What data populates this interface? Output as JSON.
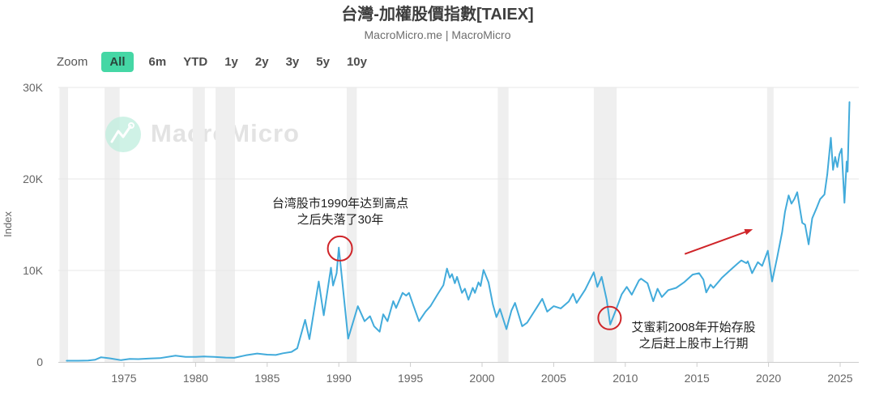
{
  "header": {
    "title": "台灣-加權股價指數[TAIEX]",
    "subtitle": "MacroMicro.me | MacroMicro"
  },
  "toolbar": {
    "zoom_label": "Zoom",
    "buttons": [
      {
        "label": "All",
        "active": true
      },
      {
        "label": "6m",
        "active": false
      },
      {
        "label": "YTD",
        "active": false
      },
      {
        "label": "1y",
        "active": false
      },
      {
        "label": "2y",
        "active": false
      },
      {
        "label": "3y",
        "active": false
      },
      {
        "label": "5y",
        "active": false
      },
      {
        "label": "10y",
        "active": false
      }
    ]
  },
  "watermark": {
    "text": "MacroMicro",
    "icon": "macromicro-logo"
  },
  "colors": {
    "accent_mint": "#45d7a5",
    "line_blue": "#42abdb",
    "annotation_red": "#cf2428",
    "recession_band": "#efefef",
    "grid_line": "#e7e7e7",
    "axis_line": "#cccccc"
  },
  "chart_data": {
    "type": "line",
    "title": "台灣-加權股價指數[TAIEX]",
    "ylabel": "Index",
    "x_axis": {
      "min": 1970.42,
      "max": 2026.3,
      "ticks": [
        1975,
        1980,
        1985,
        1990,
        1995,
        2000,
        2005,
        2010,
        2015,
        2020,
        2025
      ]
    },
    "y_axis": {
      "min": 0,
      "max": 30000,
      "ticks": [
        {
          "value": 0,
          "label": "0"
        },
        {
          "value": 10000,
          "label": "10K"
        },
        {
          "value": 20000,
          "label": "20K"
        },
        {
          "value": 30000,
          "label": "30K"
        }
      ]
    },
    "recession_bands": [
      [
        1970.5,
        1971.1
      ],
      [
        1973.65,
        1974.7
      ],
      [
        1979.8,
        1980.65
      ],
      [
        1981.4,
        1982.75
      ],
      [
        1990.55,
        1991.25
      ],
      [
        2001.1,
        2001.85
      ],
      [
        2007.8,
        2009.4
      ],
      [
        2019.9,
        2020.35
      ]
    ],
    "series": [
      {
        "name": "TAIEX",
        "points": [
          [
            1971.0,
            130
          ],
          [
            1971.8,
            135
          ],
          [
            1972.5,
            160
          ],
          [
            1973.0,
            250
          ],
          [
            1973.4,
            510
          ],
          [
            1974.0,
            400
          ],
          [
            1974.8,
            195
          ],
          [
            1975.4,
            330
          ],
          [
            1976.0,
            310
          ],
          [
            1976.8,
            370
          ],
          [
            1977.5,
            420
          ],
          [
            1978.6,
            690
          ],
          [
            1979.3,
            550
          ],
          [
            1980.0,
            560
          ],
          [
            1980.6,
            590
          ],
          [
            1981.3,
            550
          ],
          [
            1982.1,
            480
          ],
          [
            1982.7,
            450
          ],
          [
            1983.5,
            730
          ],
          [
            1984.3,
            920
          ],
          [
            1985.0,
            800
          ],
          [
            1985.6,
            760
          ],
          [
            1986.1,
            950
          ],
          [
            1986.7,
            1100
          ],
          [
            1987.1,
            1500
          ],
          [
            1987.65,
            4600
          ],
          [
            1987.95,
            2500
          ],
          [
            1988.6,
            8800
          ],
          [
            1988.95,
            5100
          ],
          [
            1989.45,
            10300
          ],
          [
            1989.6,
            8350
          ],
          [
            1989.85,
            9700
          ],
          [
            1990.0,
            12500
          ],
          [
            1990.65,
            2550
          ],
          [
            1991.33,
            6100
          ],
          [
            1991.8,
            4450
          ],
          [
            1992.18,
            5000
          ],
          [
            1992.46,
            3900
          ],
          [
            1992.85,
            3300
          ],
          [
            1993.1,
            5200
          ],
          [
            1993.4,
            4450
          ],
          [
            1993.8,
            6650
          ],
          [
            1994.0,
            5900
          ],
          [
            1994.45,
            7550
          ],
          [
            1994.7,
            7250
          ],
          [
            1994.9,
            7550
          ],
          [
            1995.2,
            6200
          ],
          [
            1995.6,
            4450
          ],
          [
            1996.05,
            5500
          ],
          [
            1996.4,
            6100
          ],
          [
            1996.9,
            7400
          ],
          [
            1997.3,
            8400
          ],
          [
            1997.55,
            10200
          ],
          [
            1997.75,
            9200
          ],
          [
            1997.9,
            9600
          ],
          [
            1998.1,
            8600
          ],
          [
            1998.25,
            9300
          ],
          [
            1998.6,
            7550
          ],
          [
            1998.8,
            8000
          ],
          [
            1999.05,
            6800
          ],
          [
            1999.35,
            8100
          ],
          [
            1999.5,
            7550
          ],
          [
            1999.75,
            8700
          ],
          [
            1999.9,
            8300
          ],
          [
            2000.1,
            10050
          ],
          [
            2000.45,
            8700
          ],
          [
            2000.75,
            6300
          ],
          [
            2001.0,
            4900
          ],
          [
            2001.25,
            5800
          ],
          [
            2001.7,
            3580
          ],
          [
            2002.05,
            5600
          ],
          [
            2002.3,
            6450
          ],
          [
            2002.8,
            3900
          ],
          [
            2003.15,
            4300
          ],
          [
            2003.8,
            5900
          ],
          [
            2004.2,
            6900
          ],
          [
            2004.55,
            5500
          ],
          [
            2005.0,
            6100
          ],
          [
            2005.5,
            5850
          ],
          [
            2006.05,
            6600
          ],
          [
            2006.35,
            7450
          ],
          [
            2006.6,
            6450
          ],
          [
            2007.2,
            7900
          ],
          [
            2007.8,
            9800
          ],
          [
            2008.05,
            8200
          ],
          [
            2008.35,
            9300
          ],
          [
            2008.7,
            6800
          ],
          [
            2008.95,
            4090
          ],
          [
            2009.35,
            5700
          ],
          [
            2009.75,
            7400
          ],
          [
            2010.1,
            8200
          ],
          [
            2010.45,
            7350
          ],
          [
            2010.95,
            8900
          ],
          [
            2011.1,
            9100
          ],
          [
            2011.55,
            8600
          ],
          [
            2011.95,
            6630
          ],
          [
            2012.25,
            8000
          ],
          [
            2012.55,
            7100
          ],
          [
            2013.0,
            7850
          ],
          [
            2013.55,
            8100
          ],
          [
            2014.1,
            8700
          ],
          [
            2014.7,
            9550
          ],
          [
            2015.15,
            9700
          ],
          [
            2015.45,
            9000
          ],
          [
            2015.65,
            7600
          ],
          [
            2015.95,
            8450
          ],
          [
            2016.15,
            8100
          ],
          [
            2016.75,
            9200
          ],
          [
            2017.3,
            10000
          ],
          [
            2017.8,
            10700
          ],
          [
            2018.1,
            11100
          ],
          [
            2018.45,
            10800
          ],
          [
            2018.55,
            11000
          ],
          [
            2018.85,
            9700
          ],
          [
            2019.25,
            10900
          ],
          [
            2019.55,
            10500
          ],
          [
            2019.95,
            12150
          ],
          [
            2020.25,
            8800
          ],
          [
            2020.6,
            11400
          ],
          [
            2020.95,
            14200
          ],
          [
            2021.15,
            16400
          ],
          [
            2021.4,
            18200
          ],
          [
            2021.6,
            17300
          ],
          [
            2021.8,
            17800
          ],
          [
            2022.0,
            18550
          ],
          [
            2022.35,
            15200
          ],
          [
            2022.55,
            15000
          ],
          [
            2022.8,
            12850
          ],
          [
            2023.05,
            15700
          ],
          [
            2023.35,
            16800
          ],
          [
            2023.6,
            17800
          ],
          [
            2023.9,
            18300
          ],
          [
            2024.1,
            20500
          ],
          [
            2024.35,
            24500
          ],
          [
            2024.5,
            21000
          ],
          [
            2024.65,
            22400
          ],
          [
            2024.8,
            21300
          ],
          [
            2024.95,
            22700
          ],
          [
            2025.1,
            23300
          ],
          [
            2025.3,
            17400
          ],
          [
            2025.45,
            21900
          ],
          [
            2025.52,
            20800
          ],
          [
            2025.65,
            28400
          ]
        ]
      }
    ],
    "annotations": {
      "peak_note": {
        "lines": [
          "台湾股市1990年达到高点",
          "之后失落了30年"
        ],
        "x": 420,
        "y": 242,
        "circle": {
          "year": 1990.08,
          "value": 12400,
          "r": 15
        }
      },
      "dip_note": {
        "lines": [
          "艾蜜莉2008年开始存股",
          "之后赶上股市上行期"
        ],
        "x": 856,
        "y": 395,
        "circle": {
          "year": 2008.9,
          "value": 4800,
          "r": 14
        }
      },
      "trend_arrow": {
        "from": [
          2014.15,
          11800
        ],
        "to": [
          2018.9,
          14500
        ]
      }
    }
  }
}
